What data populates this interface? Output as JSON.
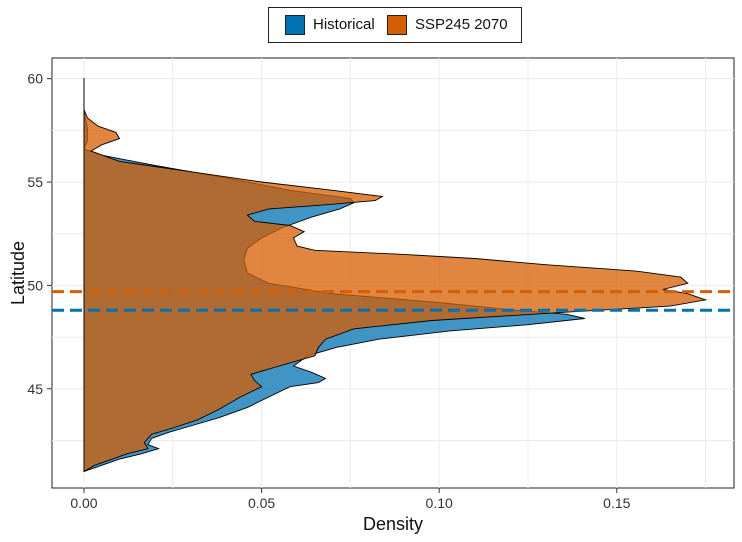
{
  "legend": {
    "items": [
      {
        "label": "Historical",
        "color": "#0072B2"
      },
      {
        "label": "SSP245 2070",
        "color": "#D55E00"
      }
    ]
  },
  "chart_data": {
    "type": "area",
    "orientation": "horizontal-density",
    "xlabel": "Density",
    "ylabel": "Latitude",
    "xlim": [
      -0.009,
      0.183
    ],
    "ylim": [
      40.2,
      61.0
    ],
    "x_ticks": [
      "0.00",
      "0.05",
      "0.10",
      "0.15"
    ],
    "x_tick_values": [
      0,
      0.05,
      0.1,
      0.15
    ],
    "y_ticks": [
      "45",
      "50",
      "55",
      "60"
    ],
    "y_tick_values": [
      45,
      50,
      55,
      60
    ],
    "grid": true,
    "legend_position": "top",
    "series": [
      {
        "name": "Historical",
        "color": "#0072B2",
        "mean_line": 48.8,
        "points": [
          [
            0.0,
            41.0
          ],
          [
            0.005,
            41.3
          ],
          [
            0.01,
            41.6
          ],
          [
            0.016,
            41.85
          ],
          [
            0.021,
            42.1
          ],
          [
            0.018,
            42.3
          ],
          [
            0.019,
            42.6
          ],
          [
            0.024,
            42.9
          ],
          [
            0.03,
            43.2
          ],
          [
            0.038,
            43.6
          ],
          [
            0.046,
            44.1
          ],
          [
            0.052,
            44.6
          ],
          [
            0.058,
            45.1
          ],
          [
            0.066,
            45.3
          ],
          [
            0.068,
            45.5
          ],
          [
            0.064,
            45.8
          ],
          [
            0.059,
            46.1
          ],
          [
            0.063,
            46.6
          ],
          [
            0.071,
            47.0
          ],
          [
            0.083,
            47.4
          ],
          [
            0.103,
            47.8
          ],
          [
            0.125,
            48.1
          ],
          [
            0.141,
            48.4
          ],
          [
            0.136,
            48.6
          ],
          [
            0.122,
            48.8
          ],
          [
            0.098,
            49.2
          ],
          [
            0.07,
            49.6
          ],
          [
            0.052,
            50.1
          ],
          [
            0.046,
            50.6
          ],
          [
            0.045,
            51.2
          ],
          [
            0.046,
            51.8
          ],
          [
            0.05,
            52.3
          ],
          [
            0.056,
            52.8
          ],
          [
            0.064,
            53.3
          ],
          [
            0.072,
            53.7
          ],
          [
            0.076,
            54.0
          ],
          [
            0.075,
            54.2
          ],
          [
            0.058,
            54.6
          ],
          [
            0.04,
            55.2
          ],
          [
            0.02,
            55.8
          ],
          [
            0.005,
            56.3
          ],
          [
            0.0,
            56.6
          ],
          [
            0.001,
            57.0
          ],
          [
            0.001,
            57.6
          ],
          [
            0.0,
            58.5
          ],
          [
            0.0,
            60.0
          ]
        ]
      },
      {
        "name": "SSP245 2070",
        "color": "#D55E00",
        "mean_line": 49.7,
        "points": [
          [
            0.0,
            41.0
          ],
          [
            0.003,
            41.3
          ],
          [
            0.008,
            41.6
          ],
          [
            0.012,
            41.85
          ],
          [
            0.018,
            42.1
          ],
          [
            0.017,
            42.4
          ],
          [
            0.019,
            42.8
          ],
          [
            0.025,
            43.1
          ],
          [
            0.032,
            43.5
          ],
          [
            0.038,
            44.0
          ],
          [
            0.044,
            44.6
          ],
          [
            0.05,
            45.1
          ],
          [
            0.048,
            45.4
          ],
          [
            0.047,
            45.7
          ],
          [
            0.055,
            46.1
          ],
          [
            0.065,
            46.6
          ],
          [
            0.066,
            47.0
          ],
          [
            0.068,
            47.4
          ],
          [
            0.076,
            47.9
          ],
          [
            0.098,
            48.3
          ],
          [
            0.135,
            48.7
          ],
          [
            0.165,
            49.0
          ],
          [
            0.175,
            49.3
          ],
          [
            0.17,
            49.6
          ],
          [
            0.163,
            49.8
          ],
          [
            0.17,
            50.1
          ],
          [
            0.168,
            50.4
          ],
          [
            0.155,
            50.7
          ],
          [
            0.13,
            51.0
          ],
          [
            0.11,
            51.3
          ],
          [
            0.09,
            51.5
          ],
          [
            0.065,
            51.7
          ],
          [
            0.06,
            51.9
          ],
          [
            0.059,
            52.3
          ],
          [
            0.062,
            52.6
          ],
          [
            0.058,
            52.9
          ],
          [
            0.048,
            53.1
          ],
          [
            0.046,
            53.4
          ],
          [
            0.052,
            53.7
          ],
          [
            0.068,
            53.9
          ],
          [
            0.082,
            54.1
          ],
          [
            0.084,
            54.3
          ],
          [
            0.07,
            54.6
          ],
          [
            0.05,
            55.0
          ],
          [
            0.03,
            55.5
          ],
          [
            0.01,
            56.0
          ],
          [
            0.002,
            56.5
          ],
          [
            0.005,
            56.8
          ],
          [
            0.01,
            57.1
          ],
          [
            0.009,
            57.4
          ],
          [
            0.004,
            57.7
          ],
          [
            0.001,
            58.1
          ],
          [
            0.0,
            58.5
          ],
          [
            0.0,
            60.0
          ]
        ]
      }
    ]
  }
}
